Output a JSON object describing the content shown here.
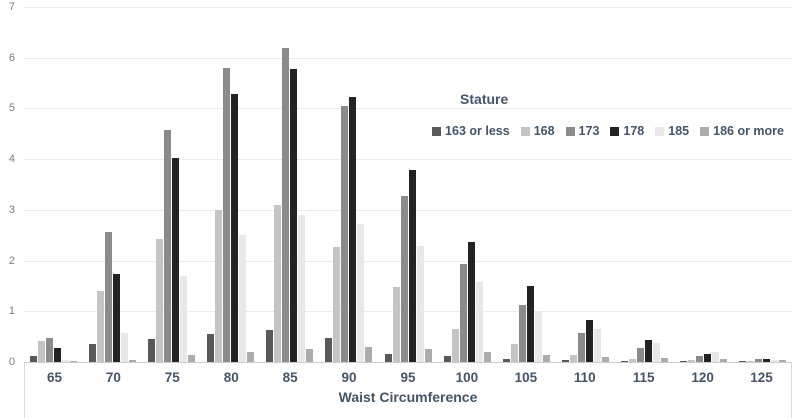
{
  "colors": {
    "background": "#ffffff",
    "grid": "#e7ebed",
    "axis_line": "#c8ccce",
    "strip_border": "#d9dcde",
    "y_tick_label": "#7b7b7b",
    "category_label": "#44546a"
  },
  "chart_data": {
    "type": "bar",
    "title": "",
    "xlabel": "Waist Circumference",
    "ylabel": "",
    "legend_title": "Stature",
    "legend_position": "upper-right-inside",
    "grid": true,
    "ylim": [
      0,
      7
    ],
    "yticks": [
      0,
      1,
      2,
      3,
      4,
      5,
      6,
      7
    ],
    "categories": [
      "65",
      "70",
      "75",
      "80",
      "85",
      "90",
      "95",
      "100",
      "105",
      "110",
      "115",
      "120",
      "125"
    ],
    "series": [
      {
        "name": "163 or less",
        "color": "#595959",
        "values": [
          0.12,
          0.35,
          0.46,
          0.56,
          0.63,
          0.48,
          0.16,
          0.12,
          0.06,
          0.03,
          0.02,
          0.01,
          0.01
        ]
      },
      {
        "name": "168",
        "color": "#c4c4c4",
        "values": [
          0.42,
          1.4,
          2.43,
          3.0,
          3.1,
          2.26,
          1.48,
          0.65,
          0.36,
          0.13,
          0.06,
          0.03,
          0.02
        ]
      },
      {
        "name": "173",
        "color": "#8b8b8b",
        "values": [
          0.48,
          2.57,
          4.57,
          5.8,
          6.2,
          5.05,
          3.28,
          1.93,
          1.12,
          0.57,
          0.28,
          0.11,
          0.05
        ]
      },
      {
        "name": "178",
        "color": "#232323",
        "values": [
          0.28,
          1.73,
          4.03,
          5.28,
          5.78,
          5.22,
          3.78,
          2.37,
          1.5,
          0.82,
          0.43,
          0.16,
          0.06
        ]
      },
      {
        "name": "185",
        "color": "#e8e8e8",
        "values": [
          0.04,
          0.58,
          1.69,
          2.5,
          2.9,
          2.73,
          2.28,
          1.57,
          1.0,
          0.65,
          0.37,
          0.2,
          0.04
        ]
      },
      {
        "name": "186 or more",
        "color": "#acacac",
        "values": [
          0.02,
          0.03,
          0.14,
          0.2,
          0.26,
          0.3,
          0.25,
          0.2,
          0.13,
          0.1,
          0.07,
          0.05,
          0.03
        ]
      }
    ]
  }
}
